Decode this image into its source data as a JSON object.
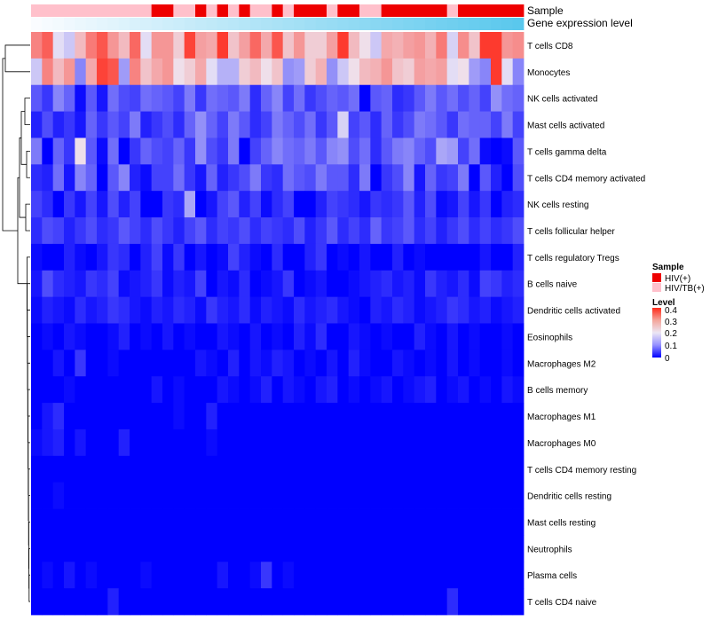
{
  "chart_data": {
    "type": "heatmap",
    "annotation_tracks": [
      "Sample",
      "Gene expression level"
    ],
    "rows": [
      "T cells CD8",
      "Monocytes",
      "NK cells activated",
      "Mast cells activated",
      "T cells gamma delta",
      "T cells CD4 memory activated",
      "NK cells resting",
      "T cells follicular helper",
      "T cells regulatory  Tregs",
      "B cells naive",
      "Dendritic cells activated",
      "Eosinophils",
      "Macrophages M2",
      "B cells memory",
      "Macrophages M1",
      "Macrophages M0",
      "T cells CD4 memory resting",
      "Dendritic cells resting",
      "Mast cells resting",
      "Neutrophils",
      "Plasma cells",
      "T cells CD4 naive"
    ],
    "sample_groups": [
      "P",
      "P",
      "P",
      "P",
      "P",
      "P",
      "P",
      "P",
      "P",
      "P",
      "P",
      "H",
      "H",
      "P",
      "P",
      "H",
      "P",
      "H",
      "P",
      "H",
      "P",
      "P",
      "H",
      "P",
      "H",
      "H",
      "H",
      "P",
      "H",
      "H",
      "P",
      "P",
      "H",
      "H",
      "H",
      "H",
      "H",
      "H",
      "P",
      "H",
      "H",
      "H",
      "H",
      "H",
      "H"
    ],
    "legend": {
      "sample": {
        "title": "Sample",
        "items": [
          {
            "label": "HIV(+)",
            "color": "#ee0000",
            "key": "H"
          },
          {
            "label": "HIV/TB(+)",
            "color": "#ffc0cb",
            "key": "P"
          }
        ]
      },
      "level": {
        "title": "Level",
        "ticks": [
          "0.4",
          "0.3",
          "0.2",
          "0.1",
          "0"
        ],
        "range": [
          0,
          0.42
        ]
      }
    },
    "values": [
      [
        0.32,
        0.36,
        0.2,
        0.18,
        0.26,
        0.33,
        0.37,
        0.3,
        0.26,
        0.35,
        0.2,
        0.3,
        0.3,
        0.24,
        0.39,
        0.29,
        0.28,
        0.4,
        0.25,
        0.29,
        0.35,
        0.28,
        0.37,
        0.25,
        0.3,
        0.24,
        0.24,
        0.29,
        0.4,
        0.26,
        0.22,
        0.18,
        0.28,
        0.27,
        0.29,
        0.3,
        0.27,
        0.33,
        0.19,
        0.31,
        0.25,
        0.4,
        0.4,
        0.3,
        0.31
      ],
      [
        0.18,
        0.32,
        0.26,
        0.3,
        0.12,
        0.28,
        0.39,
        0.37,
        0.14,
        0.32,
        0.25,
        0.28,
        0.3,
        0.22,
        0.24,
        0.28,
        0.2,
        0.16,
        0.16,
        0.24,
        0.26,
        0.22,
        0.25,
        0.13,
        0.14,
        0.24,
        0.27,
        0.13,
        0.18,
        0.22,
        0.26,
        0.27,
        0.3,
        0.25,
        0.24,
        0.29,
        0.28,
        0.29,
        0.2,
        0.22,
        0.14,
        0.12,
        0.4,
        0.2,
        0.12
      ],
      [
        0.08,
        0.05,
        0.12,
        0.09,
        0.01,
        0.08,
        0.02,
        0.1,
        0.07,
        0.06,
        0.1,
        0.09,
        0.08,
        0.06,
        0.11,
        0.05,
        0.1,
        0.09,
        0.08,
        0.11,
        0.04,
        0.09,
        0.12,
        0.06,
        0.1,
        0.05,
        0.07,
        0.09,
        0.08,
        0.1,
        0.0,
        0.08,
        0.09,
        0.04,
        0.05,
        0.08,
        0.11,
        0.08,
        0.1,
        0.07,
        0.09,
        0.06,
        0.13,
        0.1,
        0.09
      ],
      [
        0.03,
        0.07,
        0.03,
        0.05,
        0.02,
        0.09,
        0.05,
        0.08,
        0.06,
        0.11,
        0.03,
        0.05,
        0.07,
        0.04,
        0.09,
        0.13,
        0.09,
        0.06,
        0.11,
        0.08,
        0.04,
        0.06,
        0.11,
        0.09,
        0.07,
        0.1,
        0.05,
        0.08,
        0.19,
        0.06,
        0.08,
        0.04,
        0.09,
        0.05,
        0.07,
        0.11,
        0.1,
        0.08,
        0.05,
        0.1,
        0.09,
        0.09,
        0.06,
        0.11,
        0.06
      ],
      [
        0.11,
        0.0,
        0.09,
        0.05,
        0.22,
        0.08,
        0.01,
        0.1,
        0.0,
        0.05,
        0.09,
        0.07,
        0.06,
        0.09,
        0.05,
        0.13,
        0.07,
        0.05,
        0.11,
        0.0,
        0.06,
        0.09,
        0.12,
        0.1,
        0.09,
        0.11,
        0.08,
        0.12,
        0.13,
        0.07,
        0.1,
        0.04,
        0.08,
        0.11,
        0.12,
        0.09,
        0.07,
        0.15,
        0.14,
        0.06,
        0.1,
        0.01,
        0.0,
        0.01,
        0.08
      ],
      [
        0.04,
        0.03,
        0.1,
        0.02,
        0.12,
        0.09,
        0.0,
        0.08,
        0.12,
        0.03,
        0.01,
        0.06,
        0.06,
        0.1,
        0.05,
        0.02,
        0.09,
        0.03,
        0.05,
        0.07,
        0.11,
        0.05,
        0.04,
        0.1,
        0.08,
        0.07,
        0.11,
        0.08,
        0.08,
        0.04,
        0.11,
        0.0,
        0.05,
        0.07,
        0.12,
        0.02,
        0.09,
        0.05,
        0.06,
        0.11,
        0.0,
        0.08,
        0.03,
        0.0,
        0.07
      ],
      [
        0.06,
        0.04,
        0.0,
        0.05,
        0.02,
        0.06,
        0.02,
        0.07,
        0.03,
        0.06,
        0.0,
        0.0,
        0.05,
        0.04,
        0.15,
        0.0,
        0.02,
        0.06,
        0.08,
        0.03,
        0.06,
        0.01,
        0.04,
        0.06,
        0.0,
        0.0,
        0.03,
        0.06,
        0.05,
        0.04,
        0.02,
        0.05,
        0.04,
        0.05,
        0.08,
        0.03,
        0.07,
        0.01,
        0.02,
        0.06,
        0.02,
        0.05,
        0.0,
        0.03,
        0.04
      ],
      [
        0.04,
        0.07,
        0.06,
        0.03,
        0.05,
        0.07,
        0.04,
        0.05,
        0.08,
        0.06,
        0.04,
        0.07,
        0.05,
        0.03,
        0.06,
        0.08,
        0.04,
        0.06,
        0.05,
        0.07,
        0.04,
        0.06,
        0.05,
        0.04,
        0.07,
        0.03,
        0.05,
        0.08,
        0.04,
        0.06,
        0.04,
        0.09,
        0.05,
        0.06,
        0.08,
        0.04,
        0.06,
        0.03,
        0.05,
        0.07,
        0.04,
        0.06,
        0.04,
        0.05,
        0.07
      ],
      [
        0.01,
        0.0,
        0.0,
        0.03,
        0.01,
        0.0,
        0.02,
        0.05,
        0.04,
        0.0,
        0.03,
        0.06,
        0.01,
        0.05,
        0.0,
        0.02,
        0.0,
        0.01,
        0.06,
        0.03,
        0.01,
        0.0,
        0.04,
        0.0,
        0.0,
        0.03,
        0.05,
        0.0,
        0.01,
        0.0,
        0.02,
        0.0,
        0.0,
        0.03,
        0.0,
        0.01,
        0.0,
        0.0,
        0.0,
        0.0,
        0.0,
        0.02,
        0.0,
        0.0,
        0.03
      ],
      [
        0.02,
        0.07,
        0.04,
        0.03,
        0.02,
        0.05,
        0.04,
        0.06,
        0.01,
        0.02,
        0.03,
        0.05,
        0.01,
        0.03,
        0.02,
        0.06,
        0.0,
        0.02,
        0.01,
        0.04,
        0.0,
        0.01,
        0.02,
        0.05,
        0.0,
        0.01,
        0.02,
        0.0,
        0.0,
        0.01,
        0.02,
        0.03,
        0.04,
        0.02,
        0.03,
        0.01,
        0.05,
        0.03,
        0.02,
        0.04,
        0.01,
        0.06,
        0.05,
        0.03,
        0.04
      ],
      [
        0.01,
        0.03,
        0.02,
        0.01,
        0.04,
        0.02,
        0.03,
        0.05,
        0.04,
        0.02,
        0.01,
        0.03,
        0.02,
        0.04,
        0.03,
        0.01,
        0.05,
        0.03,
        0.02,
        0.04,
        0.01,
        0.03,
        0.02,
        0.01,
        0.04,
        0.02,
        0.03,
        0.04,
        0.02,
        0.01,
        0.0,
        0.03,
        0.02,
        0.04,
        0.03,
        0.01,
        0.02,
        0.03,
        0.05,
        0.04,
        0.02,
        0.03,
        0.01,
        0.02,
        0.03
      ],
      [
        0.0,
        0.01,
        0.0,
        0.02,
        0.01,
        0.0,
        0.0,
        0.01,
        0.03,
        0.0,
        0.01,
        0.0,
        0.02,
        0.0,
        0.01,
        0.0,
        0.0,
        0.02,
        0.01,
        0.0,
        0.02,
        0.0,
        0.01,
        0.0,
        0.03,
        0.01,
        0.04,
        0.0,
        0.0,
        0.02,
        0.01,
        0.0,
        0.01,
        0.0,
        0.0,
        0.03,
        0.01,
        0.0,
        0.02,
        0.0,
        0.01,
        0.0,
        0.0,
        0.01,
        0.0
      ],
      [
        0.0,
        0.0,
        0.02,
        0.0,
        0.05,
        0.0,
        0.0,
        0.01,
        0.0,
        0.0,
        0.0,
        0.0,
        0.0,
        0.0,
        0.0,
        0.02,
        0.01,
        0.0,
        0.03,
        0.0,
        0.02,
        0.01,
        0.03,
        0.02,
        0.0,
        0.01,
        0.0,
        0.02,
        0.0,
        0.03,
        0.01,
        0.0,
        0.0,
        0.02,
        0.01,
        0.0,
        0.01,
        0.0,
        0.02,
        0.0,
        0.01,
        0.0,
        0.0,
        0.01,
        0.0
      ],
      [
        0.0,
        0.0,
        0.0,
        0.01,
        0.0,
        0.0,
        0.0,
        0.0,
        0.0,
        0.0,
        0.0,
        0.02,
        0.0,
        0.01,
        0.0,
        0.0,
        0.0,
        0.02,
        0.01,
        0.0,
        0.01,
        0.03,
        0.0,
        0.02,
        0.01,
        0.0,
        0.02,
        0.03,
        0.0,
        0.01,
        0.0,
        0.01,
        0.02,
        0.0,
        0.01,
        0.02,
        0.03,
        0.0,
        0.01,
        0.02,
        0.0,
        0.01,
        0.0,
        0.02,
        0.01
      ],
      [
        0.0,
        0.02,
        0.04,
        0.0,
        0.0,
        0.0,
        0.0,
        0.0,
        0.0,
        0.0,
        0.0,
        0.0,
        0.0,
        0.01,
        0.0,
        0.0,
        0.03,
        0.0,
        0.0,
        0.0,
        0.0,
        0.0,
        0.0,
        0.0,
        0.0,
        0.0,
        0.0,
        0.0,
        0.0,
        0.0,
        0.0,
        0.0,
        0.0,
        0.0,
        0.0,
        0.0,
        0.0,
        0.0,
        0.0,
        0.0,
        0.0,
        0.0,
        0.0,
        0.0,
        0.0
      ],
      [
        0.01,
        0.02,
        0.03,
        0.0,
        0.02,
        0.0,
        0.0,
        0.0,
        0.03,
        0.0,
        0.0,
        0.0,
        0.0,
        0.0,
        0.0,
        0.0,
        0.01,
        0.0,
        0.0,
        0.0,
        0.0,
        0.0,
        0.0,
        0.0,
        0.0,
        0.0,
        0.0,
        0.0,
        0.0,
        0.0,
        0.0,
        0.0,
        0.0,
        0.0,
        0.0,
        0.0,
        0.0,
        0.0,
        0.0,
        0.0,
        0.0,
        0.0,
        0.0,
        0.0,
        0.0
      ],
      [
        0.0,
        0.0,
        0.0,
        0.0,
        0.0,
        0.0,
        0.0,
        0.0,
        0.0,
        0.0,
        0.0,
        0.0,
        0.0,
        0.0,
        0.0,
        0.0,
        0.0,
        0.0,
        0.0,
        0.0,
        0.0,
        0.0,
        0.0,
        0.0,
        0.0,
        0.0,
        0.0,
        0.0,
        0.0,
        0.0,
        0.0,
        0.0,
        0.0,
        0.0,
        0.0,
        0.0,
        0.0,
        0.0,
        0.0,
        0.0,
        0.0,
        0.0,
        0.0,
        0.0,
        0.0
      ],
      [
        0.0,
        0.0,
        0.01,
        0.0,
        0.0,
        0.0,
        0.0,
        0.0,
        0.0,
        0.0,
        0.0,
        0.0,
        0.0,
        0.0,
        0.0,
        0.0,
        0.0,
        0.0,
        0.0,
        0.0,
        0.0,
        0.0,
        0.0,
        0.0,
        0.0,
        0.0,
        0.0,
        0.0,
        0.0,
        0.0,
        0.0,
        0.0,
        0.0,
        0.0,
        0.0,
        0.0,
        0.0,
        0.0,
        0.0,
        0.0,
        0.0,
        0.0,
        0.0,
        0.0,
        0.0
      ],
      [
        0.0,
        0.0,
        0.0,
        0.0,
        0.0,
        0.0,
        0.0,
        0.0,
        0.0,
        0.0,
        0.0,
        0.0,
        0.0,
        0.0,
        0.0,
        0.0,
        0.0,
        0.0,
        0.0,
        0.0,
        0.0,
        0.0,
        0.0,
        0.0,
        0.0,
        0.0,
        0.0,
        0.0,
        0.0,
        0.0,
        0.0,
        0.0,
        0.0,
        0.0,
        0.0,
        0.0,
        0.0,
        0.0,
        0.0,
        0.0,
        0.0,
        0.0,
        0.0,
        0.0,
        0.0
      ],
      [
        0.0,
        0.0,
        0.0,
        0.0,
        0.0,
        0.0,
        0.0,
        0.0,
        0.0,
        0.0,
        0.0,
        0.0,
        0.0,
        0.0,
        0.0,
        0.0,
        0.0,
        0.0,
        0.0,
        0.0,
        0.0,
        0.0,
        0.0,
        0.0,
        0.0,
        0.0,
        0.0,
        0.0,
        0.0,
        0.0,
        0.0,
        0.0,
        0.0,
        0.0,
        0.0,
        0.0,
        0.0,
        0.0,
        0.0,
        0.0,
        0.0,
        0.0,
        0.0,
        0.0,
        0.0
      ],
      [
        0.0,
        0.01,
        0.0,
        0.02,
        0.0,
        0.01,
        0.0,
        0.0,
        0.0,
        0.0,
        0.01,
        0.0,
        0.0,
        0.0,
        0.0,
        0.0,
        0.0,
        0.02,
        0.0,
        0.0,
        0.01,
        0.05,
        0.0,
        0.01,
        0.0,
        0.0,
        0.0,
        0.0,
        0.0,
        0.0,
        0.0,
        0.0,
        0.0,
        0.0,
        0.0,
        0.0,
        0.0,
        0.0,
        0.0,
        0.0,
        0.0,
        0.0,
        0.0,
        0.0,
        0.0
      ],
      [
        0.0,
        0.0,
        0.0,
        0.0,
        0.0,
        0.0,
        0.0,
        0.03,
        0.0,
        0.0,
        0.0,
        0.0,
        0.0,
        0.0,
        0.0,
        0.0,
        0.0,
        0.0,
        0.0,
        0.0,
        0.0,
        0.0,
        0.0,
        0.0,
        0.0,
        0.0,
        0.0,
        0.0,
        0.0,
        0.0,
        0.0,
        0.0,
        0.0,
        0.0,
        0.0,
        0.0,
        0.0,
        0.0,
        0.04,
        0.0,
        0.0,
        0.0,
        0.0,
        0.0,
        0.0
      ]
    ]
  }
}
